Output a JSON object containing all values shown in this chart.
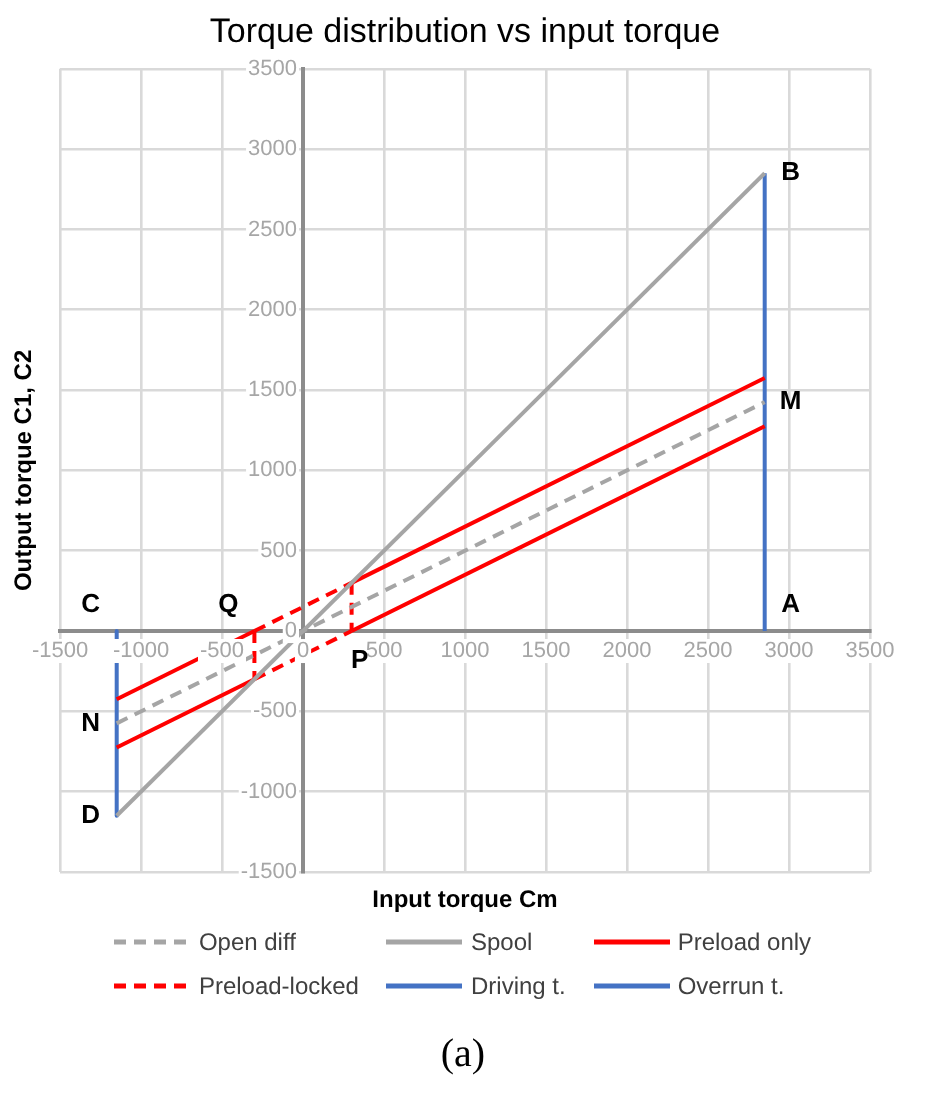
{
  "chart_data": {
    "type": "line",
    "title": "Torque distribution vs input torque",
    "xlabel": "Input torque Cm",
    "ylabel": "Output torque C1, C2",
    "xlim": [
      -1500,
      3500
    ],
    "xticks": [
      -1500,
      -1000,
      -500,
      0,
      500,
      1000,
      1500,
      2000,
      2500,
      3000,
      3500
    ],
    "ylim": [
      -1500,
      3500
    ],
    "yticks": [
      -1500,
      -1000,
      -500,
      0,
      500,
      1000,
      1500,
      2000,
      2500,
      3000,
      3500
    ],
    "grid": true,
    "legend": "bottom",
    "marker": "none",
    "series": [
      {
        "name": "Open diff",
        "color": "#a5a5a5",
        "line_style": "dashed",
        "x": [
          -1150,
          2850
        ],
        "values": [
          -575,
          1425
        ]
      },
      {
        "name": "Spool",
        "color": "#a5a5a5",
        "line_style": "solid",
        "x": [
          -1150,
          2850
        ],
        "values": [
          -1150,
          2850
        ]
      },
      {
        "name": "Preload only",
        "color": "#ff0000",
        "line_style": "solid",
        "x": [
          300,
          2850
        ],
        "values": [
          300,
          1575
        ]
      },
      {
        "color": "#ff0000",
        "line_style": "solid",
        "x": [
          -1150,
          -300
        ],
        "values": [
          -425,
          0
        ]
      },
      {
        "color": "#ff0000",
        "line_style": "solid",
        "x": [
          -1150,
          -300
        ],
        "values": [
          -725,
          -300
        ]
      },
      {
        "color": "#ff0000",
        "line_style": "solid",
        "x": [
          300,
          2850
        ],
        "values": [
          0,
          1275
        ]
      },
      {
        "name": "Preload-locked",
        "color": "#ff0000",
        "line_style": "dashed",
        "x": [
          -300,
          300
        ],
        "values": [
          0,
          300
        ]
      },
      {
        "color": "#ff0000",
        "line_style": "dashed",
        "x": [
          -300,
          300
        ],
        "values": [
          -300,
          0
        ]
      },
      {
        "color": "#ff0000",
        "line_style": "dashed",
        "x": [
          -300,
          -300
        ],
        "values": [
          0,
          -300
        ]
      },
      {
        "color": "#ff0000",
        "line_style": "dashed",
        "x": [
          300,
          300
        ],
        "values": [
          300,
          0
        ]
      },
      {
        "name": "Driving t.",
        "color": "#4472c4",
        "line_style": "solid",
        "x": [
          2850,
          2850
        ],
        "values": [
          0,
          2850
        ]
      },
      {
        "name": "Overrun t.",
        "color": "#4472c4",
        "line_style": "solid",
        "x": [
          -1150,
          -1150
        ],
        "values": [
          0,
          -1150
        ]
      }
    ],
    "annotations": [
      {
        "text": "A",
        "x": 2850,
        "y": 0
      },
      {
        "text": "B",
        "x": 2850,
        "y": 2850
      },
      {
        "text": "M",
        "x": 2850,
        "y": 1425
      },
      {
        "text": "C",
        "x": -1150,
        "y": 0
      },
      {
        "text": "Q",
        "x": -300,
        "y": 0
      },
      {
        "text": "P",
        "x": 300,
        "y": 0
      },
      {
        "text": "N",
        "x": -1150,
        "y": -575
      },
      {
        "text": "D",
        "x": -1150,
        "y": -1150
      },
      "(a)"
    ]
  }
}
